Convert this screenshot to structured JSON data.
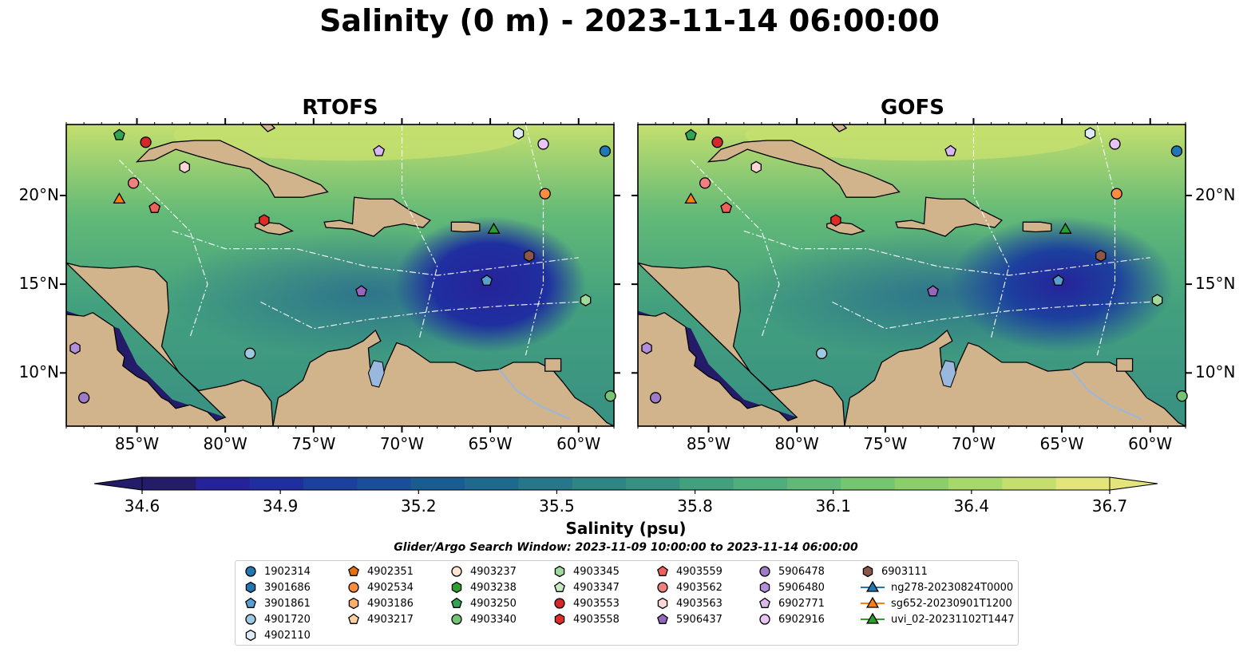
{
  "title": "Salinity (0 m) - 2023-11-14 06:00:00",
  "panels": [
    {
      "title": "RTOFS"
    },
    {
      "title": "GOFS"
    }
  ],
  "map_extent": {
    "lon": [
      -89,
      -58
    ],
    "lat": [
      7,
      24
    ]
  },
  "x_ticks": [
    "85°W",
    "80°W",
    "75°W",
    "70°W",
    "65°W",
    "60°W"
  ],
  "y_ticks": [
    "20°N",
    "15°N",
    "10°N"
  ],
  "colorbar": {
    "title": "Salinity (psu)",
    "ticks": [
      "34.6",
      "34.9",
      "35.2",
      "35.5",
      "35.8",
      "36.1",
      "36.4",
      "36.7"
    ],
    "colors": [
      "#241c68",
      "#26239a",
      "#1f2fa0",
      "#1c409e",
      "#1a4e98",
      "#195c92",
      "#1f698e",
      "#277689",
      "#2f8485",
      "#389082",
      "#43a07e",
      "#50ad7c",
      "#62b977",
      "#76c571",
      "#8ccf6a",
      "#a7d96a",
      "#c4df6e",
      "#e3e47a"
    ],
    "colormap": "haline",
    "extend": "both"
  },
  "search_window": "Glider/Argo Search Window: 2023-11-09 10:00:00 to 2023-11-14 06:00:00",
  "legend": [
    {
      "label": "1902314",
      "marker": "circle",
      "color": "#1f77b4"
    },
    {
      "label": "3901686",
      "marker": "hexagon",
      "color": "#1f77b4"
    },
    {
      "label": "3901861",
      "marker": "pentagon",
      "color": "#56a0d3"
    },
    {
      "label": "4901720",
      "marker": "circle",
      "color": "#9ecae1"
    },
    {
      "label": "4902110",
      "marker": "hexagon",
      "color": "#deebf7"
    },
    {
      "label": "4902351",
      "marker": "pentagon",
      "color": "#e6700b"
    },
    {
      "label": "4902534",
      "marker": "circle",
      "color": "#fd8d3c"
    },
    {
      "label": "4903186",
      "marker": "hexagon",
      "color": "#fdae6b"
    },
    {
      "label": "4903217",
      "marker": "pentagon",
      "color": "#fdd0a2"
    },
    {
      "label": "4903237",
      "marker": "circle",
      "color": "#fee6ce"
    },
    {
      "label": "4903238",
      "marker": "hexagon",
      "color": "#2ca02c"
    },
    {
      "label": "4903250",
      "marker": "pentagon",
      "color": "#31a354"
    },
    {
      "label": "4903340",
      "marker": "circle",
      "color": "#74c476"
    },
    {
      "label": "4903345",
      "marker": "hexagon",
      "color": "#a1d99b"
    },
    {
      "label": "4903347",
      "marker": "pentagon",
      "color": "#c7e9c0"
    },
    {
      "label": "4903553",
      "marker": "circle",
      "color": "#d62728"
    },
    {
      "label": "4903558",
      "marker": "hexagon",
      "color": "#de2d26"
    },
    {
      "label": "4903559",
      "marker": "pentagon",
      "color": "#f0605a"
    },
    {
      "label": "4903562",
      "marker": "circle",
      "color": "#f08080"
    },
    {
      "label": "4903563",
      "marker": "hexagon",
      "color": "#fcd5d5"
    },
    {
      "label": "5906437",
      "marker": "pentagon",
      "color": "#9467bd"
    },
    {
      "label": "5906478",
      "marker": "circle",
      "color": "#9e7ac8"
    },
    {
      "label": "5906480",
      "marker": "hexagon",
      "color": "#b38fdb"
    },
    {
      "label": "6902771",
      "marker": "pentagon",
      "color": "#d9b8f0"
    },
    {
      "label": "6902916",
      "marker": "circle",
      "color": "#e8c4f5"
    },
    {
      "label": "6903111",
      "marker": "hexagon",
      "color": "#8c564b"
    },
    {
      "label": "ng278-20230824T0000",
      "marker": "triangle-line",
      "color": "#1f77b4"
    },
    {
      "label": "sg652-20230901T1200",
      "marker": "triangle-line",
      "color": "#ff7f0e"
    },
    {
      "label": "uvi_02-20231102T1447",
      "marker": "triangle-line",
      "color": "#2ca02c"
    }
  ],
  "land_color": "#d2b48c",
  "river_color": "#9ab7dd",
  "markers": [
    {
      "id": "1902314",
      "lon": -58.5,
      "lat": 22.5
    },
    {
      "id": "3901861",
      "lon": -65.2,
      "lat": 15.2
    },
    {
      "id": "4901720",
      "lon": -78.6,
      "lat": 11.1
    },
    {
      "id": "4902110",
      "lon": -63.4,
      "lat": 23.5
    },
    {
      "id": "4902534",
      "lon": -61.9,
      "lat": 20.1
    },
    {
      "id": "4903250",
      "lon": -86.0,
      "lat": 23.4
    },
    {
      "id": "4903340",
      "lon": -58.2,
      "lat": 8.7
    },
    {
      "id": "4903345",
      "lon": -59.6,
      "lat": 14.1
    },
    {
      "id": "4903553",
      "lon": -84.5,
      "lat": 23.0
    },
    {
      "id": "4903558",
      "lon": -77.8,
      "lat": 18.6
    },
    {
      "id": "4903559",
      "lon": -84.0,
      "lat": 19.3
    },
    {
      "id": "4903562",
      "lon": -85.2,
      "lat": 20.7
    },
    {
      "id": "4903563",
      "lon": -82.3,
      "lat": 21.6
    },
    {
      "id": "5906437",
      "lon": -72.3,
      "lat": 14.6
    },
    {
      "id": "5906478",
      "lon": -88.0,
      "lat": 8.6
    },
    {
      "id": "5906480",
      "lon": -88.5,
      "lat": 11.4
    },
    {
      "id": "6902771",
      "lon": -71.3,
      "lat": 22.5
    },
    {
      "id": "6902916",
      "lon": -62.0,
      "lat": 22.9
    },
    {
      "id": "6903111",
      "lon": -62.8,
      "lat": 16.6
    },
    {
      "id": "sg652-20230901T1200",
      "lon": -86.0,
      "lat": 19.8
    },
    {
      "id": "uvi_02-20231102T1447",
      "lon": -64.8,
      "lat": 18.1
    }
  ]
}
